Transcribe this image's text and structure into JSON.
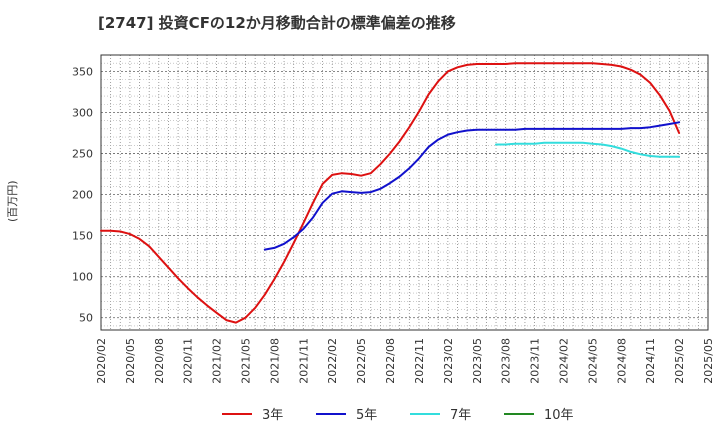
{
  "chart_data": {
    "type": "line",
    "title": "[2747]  投資CFの12か月移動合計の標準偏差の推移",
    "ylabel": "(百万円)",
    "ylim": [
      35,
      370
    ],
    "yticks": [
      50,
      100,
      150,
      200,
      250,
      300,
      350
    ],
    "x_ticks": [
      "2020/02",
      "2020/05",
      "2020/08",
      "2020/11",
      "2021/02",
      "2021/05",
      "2021/08",
      "2021/11",
      "2022/02",
      "2022/05",
      "2022/08",
      "2022/11",
      "2023/02",
      "2023/05",
      "2023/08",
      "2023/11",
      "2024/02",
      "2024/05",
      "2024/08",
      "2024/11",
      "2025/02",
      "2025/05"
    ],
    "grid": true,
    "legend_position": "bottom",
    "series": [
      {
        "name": "3年",
        "color": "#dd1111",
        "x": [
          "2020/02",
          "2020/03",
          "2020/04",
          "2020/05",
          "2020/06",
          "2020/07",
          "2020/08",
          "2020/09",
          "2020/10",
          "2020/11",
          "2020/12",
          "2021/01",
          "2021/02",
          "2021/03",
          "2021/04",
          "2021/05",
          "2021/06",
          "2021/07",
          "2021/08",
          "2021/09",
          "2021/10",
          "2021/11",
          "2021/12",
          "2022/01",
          "2022/02",
          "2022/03",
          "2022/04",
          "2022/05",
          "2022/06",
          "2022/07",
          "2022/08",
          "2022/09",
          "2022/10",
          "2022/11",
          "2022/12",
          "2023/01",
          "2023/02",
          "2023/03",
          "2023/04",
          "2023/05",
          "2023/06",
          "2023/07",
          "2023/08",
          "2023/09",
          "2023/10",
          "2023/11",
          "2023/12",
          "2024/01",
          "2024/02",
          "2024/03",
          "2024/04",
          "2024/05",
          "2024/06",
          "2024/07",
          "2024/08",
          "2024/09",
          "2024/10",
          "2024/11",
          "2024/12",
          "2025/01",
          "2025/02"
        ],
        "values": [
          156,
          156,
          155,
          152,
          146,
          137,
          124,
          111,
          98,
          86,
          75,
          65,
          56,
          47,
          44,
          50,
          62,
          78,
          97,
          118,
          141,
          165,
          190,
          213,
          224,
          226,
          225,
          223,
          226,
          237,
          250,
          265,
          282,
          301,
          322,
          338,
          350,
          355,
          358,
          359,
          359,
          359,
          359,
          360,
          360,
          360,
          360,
          360,
          360,
          360,
          360,
          360,
          359,
          358,
          356,
          352,
          346,
          336,
          321,
          302,
          275
        ]
      },
      {
        "name": "5年",
        "color": "#1111cc",
        "x": [
          "2021/07",
          "2021/08",
          "2021/09",
          "2021/10",
          "2021/11",
          "2021/12",
          "2022/01",
          "2022/02",
          "2022/03",
          "2022/04",
          "2022/05",
          "2022/06",
          "2022/07",
          "2022/08",
          "2022/09",
          "2022/10",
          "2022/11",
          "2022/12",
          "2023/01",
          "2023/02",
          "2023/03",
          "2023/04",
          "2023/05",
          "2023/06",
          "2023/07",
          "2023/08",
          "2023/09",
          "2023/10",
          "2023/11",
          "2023/12",
          "2024/01",
          "2024/02",
          "2024/03",
          "2024/04",
          "2024/05",
          "2024/06",
          "2024/07",
          "2024/08",
          "2024/09",
          "2024/10",
          "2024/11",
          "2024/12",
          "2025/01",
          "2025/02"
        ],
        "values": [
          133,
          135,
          140,
          148,
          158,
          172,
          190,
          201,
          204,
          203,
          202,
          203,
          207,
          214,
          222,
          232,
          244,
          258,
          267,
          273,
          276,
          278,
          279,
          279,
          279,
          279,
          279,
          280,
          280,
          280,
          280,
          280,
          280,
          280,
          280,
          280,
          280,
          280,
          281,
          281,
          282,
          284,
          286,
          288
        ]
      },
      {
        "name": "7年",
        "color": "#33dddd",
        "x": [
          "2023/07",
          "2023/08",
          "2023/09",
          "2023/10",
          "2023/11",
          "2023/12",
          "2024/01",
          "2024/02",
          "2024/03",
          "2024/04",
          "2024/05",
          "2024/06",
          "2024/07",
          "2024/08",
          "2024/09",
          "2024/10",
          "2024/11",
          "2024/12",
          "2025/01",
          "2025/02"
        ],
        "values": [
          261,
          261,
          262,
          262,
          262,
          263,
          263,
          263,
          263,
          263,
          262,
          261,
          259,
          256,
          252,
          249,
          247,
          246,
          246,
          246
        ]
      },
      {
        "name": "10年",
        "color": "#228822",
        "x": [],
        "values": []
      }
    ]
  }
}
